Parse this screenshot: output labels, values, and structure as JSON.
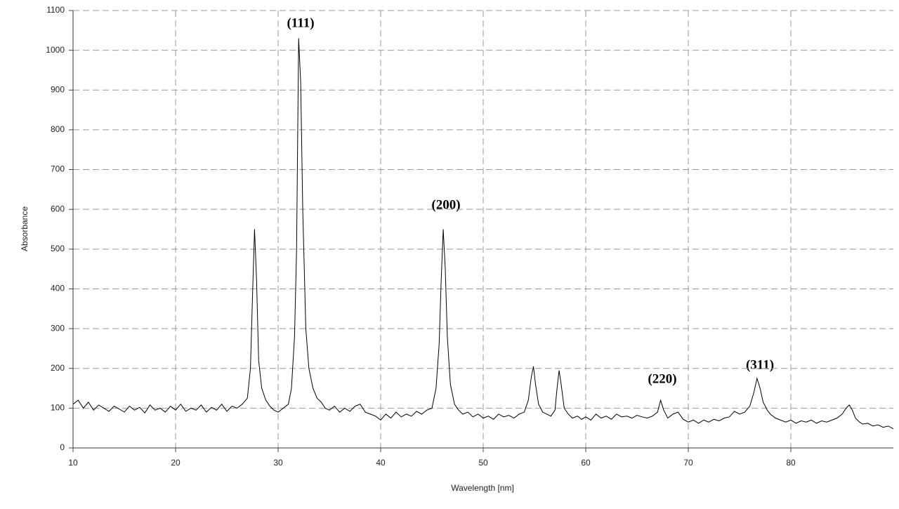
{
  "chart_data": {
    "type": "line",
    "x_label": "Wavelength [nm]",
    "y_label": "Absorbance",
    "annotations": [
      "(111)",
      "(200)",
      "(220)",
      "(311)"
    ],
    "xlim": [
      10,
      90
    ],
    "xticks": [
      10,
      20,
      30,
      40,
      50,
      60,
      70,
      80
    ],
    "ylim": [
      0,
      1100
    ],
    "yticks": [
      0,
      100,
      200,
      300,
      400,
      500,
      600,
      700,
      800,
      900,
      1000,
      1100
    ],
    "grid": true,
    "series": [
      {
        "color": "#000000",
        "x": [
          10,
          10.5,
          11,
          11.5,
          12,
          12.5,
          13,
          13.5,
          14,
          14.5,
          15,
          15.5,
          16,
          16.5,
          17,
          17.5,
          18,
          18.5,
          19,
          19.5,
          20,
          20.5,
          21,
          21.5,
          22,
          22.5,
          23,
          23.5,
          24,
          24.5,
          25,
          25.5,
          26,
          26.5,
          27,
          27.3,
          27.5,
          27.7,
          27.9,
          28.1,
          28.4,
          28.8,
          29.2,
          29.6,
          30,
          30.5,
          31,
          31.3,
          31.6,
          31.8,
          32,
          32.2,
          32.4,
          32.7,
          33,
          33.4,
          33.8,
          34.2,
          34.6,
          35,
          35.5,
          36,
          36.5,
          37,
          37.5,
          38,
          38.5,
          39,
          39.5,
          40,
          40.5,
          41,
          41.5,
          42,
          42.5,
          43,
          43.5,
          44,
          44.5,
          45,
          45.4,
          45.7,
          45.9,
          46.1,
          46.3,
          46.5,
          46.8,
          47.2,
          47.6,
          48,
          48.5,
          49,
          49.5,
          50,
          50.5,
          51,
          51.5,
          52,
          52.5,
          53,
          53.5,
          54,
          54.4,
          54.7,
          54.9,
          55.1,
          55.4,
          55.8,
          56.2,
          56.6,
          57,
          57.2,
          57.4,
          57.6,
          57.9,
          58.3,
          58.7,
          59.2,
          59.6,
          60,
          60.5,
          61,
          61.5,
          62,
          62.5,
          63,
          63.5,
          64,
          64.5,
          65,
          65.5,
          66,
          66.5,
          67,
          67.3,
          67.6,
          68,
          68.5,
          69,
          69.5,
          70,
          70.5,
          71,
          71.5,
          72,
          72.5,
          73,
          73.5,
          74,
          74.5,
          75,
          75.5,
          76,
          76.4,
          76.7,
          77,
          77.3,
          77.7,
          78,
          78.5,
          79,
          79.5,
          80,
          80.5,
          81,
          81.5,
          82,
          82.5,
          83,
          83.5,
          84,
          84.5,
          85,
          85.4,
          85.7,
          86,
          86.3,
          86.7,
          87,
          87.5,
          88,
          88.5,
          89,
          89.5,
          90
        ],
        "values": [
          110,
          120,
          100,
          115,
          95,
          108,
          100,
          92,
          105,
          98,
          90,
          105,
          95,
          102,
          88,
          108,
          95,
          100,
          90,
          105,
          95,
          110,
          92,
          100,
          95,
          108,
          90,
          102,
          95,
          110,
          92,
          105,
          100,
          110,
          125,
          200,
          380,
          550,
          420,
          220,
          150,
          120,
          105,
          95,
          90,
          100,
          110,
          150,
          280,
          500,
          1030,
          920,
          600,
          300,
          200,
          150,
          125,
          115,
          100,
          95,
          105,
          90,
          100,
          92,
          105,
          110,
          90,
          85,
          80,
          70,
          85,
          75,
          90,
          78,
          85,
          80,
          92,
          85,
          95,
          100,
          150,
          260,
          420,
          550,
          450,
          280,
          160,
          110,
          95,
          85,
          90,
          78,
          85,
          75,
          80,
          72,
          85,
          78,
          82,
          75,
          85,
          90,
          120,
          180,
          205,
          160,
          110,
          90,
          85,
          80,
          95,
          150,
          195,
          160,
          100,
          85,
          75,
          80,
          72,
          78,
          70,
          85,
          75,
          80,
          72,
          85,
          78,
          80,
          75,
          82,
          78,
          75,
          80,
          90,
          120,
          95,
          75,
          85,
          90,
          72,
          65,
          70,
          62,
          70,
          65,
          72,
          68,
          75,
          78,
          92,
          85,
          90,
          105,
          140,
          175,
          150,
          115,
          95,
          85,
          75,
          70,
          65,
          70,
          62,
          68,
          65,
          70,
          62,
          68,
          65,
          70,
          75,
          85,
          100,
          108,
          95,
          75,
          65,
          60,
          62,
          55,
          58,
          52,
          55,
          48
        ]
      }
    ]
  }
}
